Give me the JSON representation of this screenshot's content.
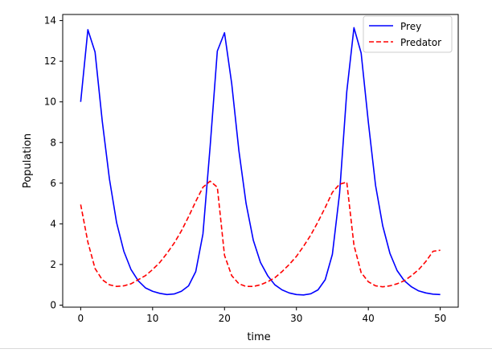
{
  "chart_data": {
    "type": "line",
    "title": "",
    "xlabel": "time",
    "ylabel": "Population",
    "xlim": [
      -2.5,
      52.5
    ],
    "ylim": [
      -0.1,
      14.3
    ],
    "xticks": [
      0,
      10,
      20,
      30,
      40,
      50
    ],
    "yticks": [
      0,
      2,
      4,
      6,
      8,
      10,
      12,
      14
    ],
    "grid": false,
    "legend_position": "top-right",
    "x": [
      0,
      1,
      2,
      3,
      4,
      5,
      6,
      7,
      8,
      9,
      10,
      11,
      12,
      13,
      14,
      15,
      16,
      17,
      18,
      19,
      20,
      21,
      22,
      23,
      24,
      25,
      26,
      27,
      28,
      29,
      30,
      31,
      32,
      33,
      34,
      35,
      36,
      37,
      38,
      39,
      40,
      41,
      42,
      43,
      44,
      45,
      46,
      47,
      48,
      49,
      50
    ],
    "series": [
      {
        "name": "Prey",
        "color": "#0000ff",
        "style": "solid",
        "values": [
          10.0,
          13.55,
          12.45,
          9.05,
          6.2,
          4.05,
          2.65,
          1.75,
          1.2,
          0.85,
          0.68,
          0.58,
          0.52,
          0.55,
          0.68,
          0.95,
          1.65,
          3.5,
          7.8,
          12.5,
          13.4,
          10.9,
          7.6,
          5.0,
          3.2,
          2.1,
          1.45,
          1.0,
          0.75,
          0.6,
          0.52,
          0.5,
          0.56,
          0.75,
          1.25,
          2.5,
          5.5,
          10.5,
          13.65,
          12.4,
          9.0,
          5.9,
          3.9,
          2.55,
          1.7,
          1.2,
          0.9,
          0.7,
          0.6,
          0.54,
          0.52
        ]
      },
      {
        "name": "Predator",
        "color": "#ff0000",
        "style": "dashed",
        "values": [
          4.95,
          3.1,
          1.8,
          1.25,
          1.0,
          0.92,
          0.95,
          1.05,
          1.25,
          1.45,
          1.75,
          2.1,
          2.55,
          3.05,
          3.65,
          4.35,
          5.1,
          5.8,
          6.1,
          5.8,
          2.45,
          1.45,
          1.05,
          0.92,
          0.92,
          1.0,
          1.15,
          1.35,
          1.65,
          2.0,
          2.4,
          2.9,
          3.45,
          4.1,
          4.8,
          5.55,
          5.95,
          6.05,
          2.95,
          1.6,
          1.15,
          0.95,
          0.9,
          0.95,
          1.05,
          1.2,
          1.45,
          1.75,
          2.15,
          2.65,
          2.7
        ]
      }
    ]
  }
}
